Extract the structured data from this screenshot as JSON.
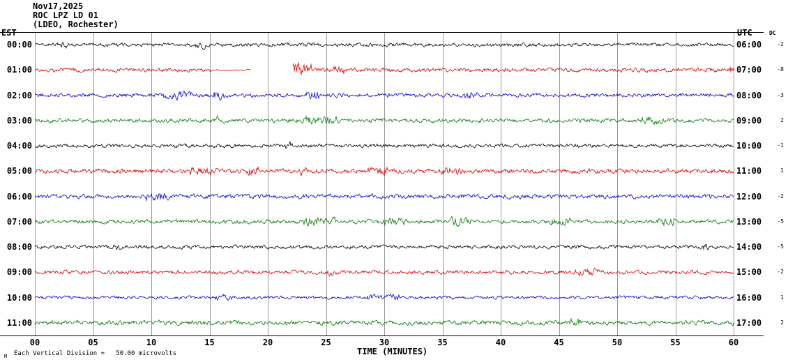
{
  "header": {
    "date": "Nov17,2025",
    "station": "ROC LPZ LD 01",
    "location": "(LDEO, Rochester)"
  },
  "axes": {
    "left_label": "EST",
    "right_label": "UTC",
    "dc_label": "DC",
    "x_ticks": [
      "00",
      "05",
      "10",
      "15",
      "20",
      "25",
      "30",
      "35",
      "40",
      "45",
      "50",
      "55",
      "60"
    ],
    "x_label": "TIME (MINUTES)"
  },
  "footer": {
    "mark": "M",
    "scale_note": "Each Vertical Division =   50.00 microvolts"
  },
  "chart_data": {
    "type": "line",
    "description": "12-hour helicorder seismogram; one 60-minute noise trace per hourly row, colors cycling black/red/blue/green",
    "x_range_minutes": [
      0,
      60
    ],
    "vertical_division_microvolts": 50.0,
    "rows": [
      {
        "est": "00:00",
        "utc": "06:00",
        "color": "#000000",
        "dc": "-2",
        "rel_amp": 0.9
      },
      {
        "est": "01:00",
        "utc": "07:00",
        "color": "#d40000",
        "dc": "-8",
        "rel_amp": 1.0,
        "quiet_minutes": [
          15.3,
          18.6
        ],
        "gap_minutes": [
          18.6,
          22.1
        ],
        "burst": {
          "start_min": 22.1,
          "end_min": 23.8,
          "scale": 3
        }
      },
      {
        "est": "02:00",
        "utc": "08:00",
        "color": "#0000cc",
        "dc": "-3",
        "rel_amp": 1.0
      },
      {
        "est": "03:00",
        "utc": "09:00",
        "color": "#007700",
        "dc": "2",
        "rel_amp": 1.0
      },
      {
        "est": "04:00",
        "utc": "10:00",
        "color": "#000000",
        "dc": "-1",
        "rel_amp": 0.9
      },
      {
        "est": "05:00",
        "utc": "11:00",
        "color": "#d40000",
        "dc": "1",
        "rel_amp": 1.1
      },
      {
        "est": "06:00",
        "utc": "12:00",
        "color": "#0000cc",
        "dc": "-2",
        "rel_amp": 1.1
      },
      {
        "est": "07:00",
        "utc": "13:00",
        "color": "#007700",
        "dc": "-5",
        "rel_amp": 1.0
      },
      {
        "est": "08:00",
        "utc": "14:00",
        "color": "#000000",
        "dc": "-5",
        "rel_amp": 0.9
      },
      {
        "est": "09:00",
        "utc": "15:00",
        "color": "#d40000",
        "dc": "-2",
        "rel_amp": 1.0
      },
      {
        "est": "10:00",
        "utc": "16:00",
        "color": "#0000cc",
        "dc": "1",
        "rel_amp": 0.8
      },
      {
        "est": "11:00",
        "utc": "17:00",
        "color": "#007700",
        "dc": "2",
        "rel_amp": 1.1
      }
    ]
  }
}
